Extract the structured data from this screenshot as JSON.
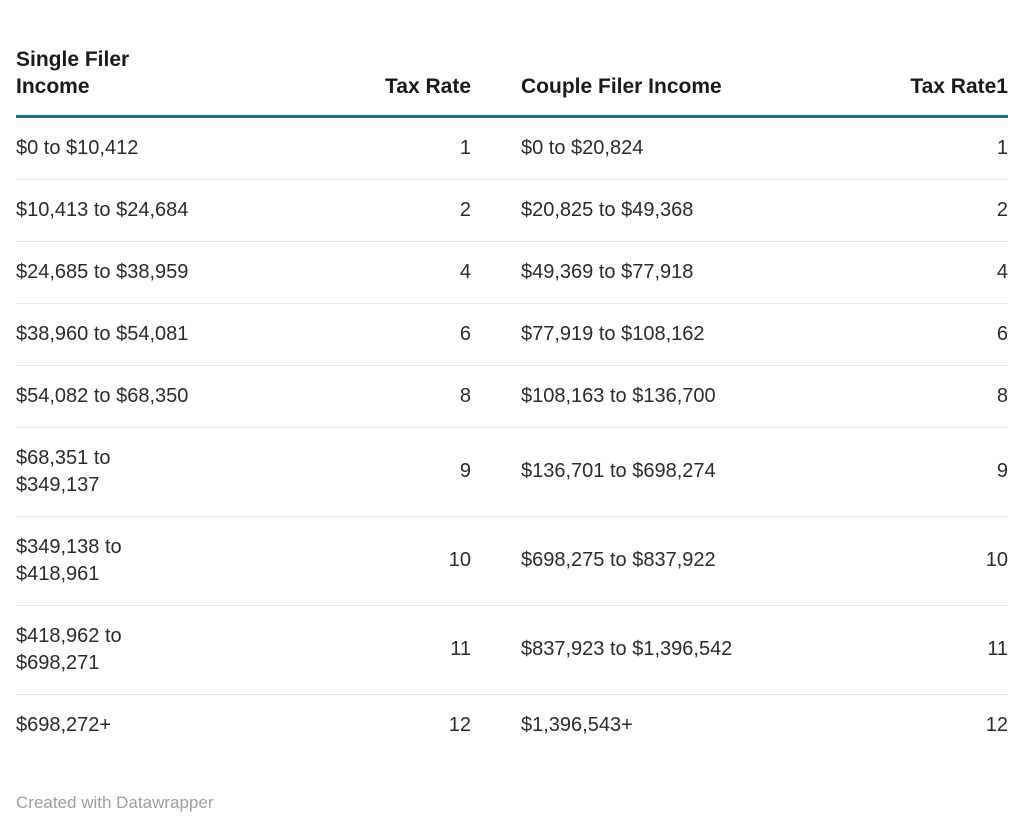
{
  "chart_data": {
    "type": "table",
    "columns": [
      "Single Filer Income",
      "Tax Rate",
      "Couple Filer Income",
      "Tax Rate1"
    ],
    "rows": [
      [
        "$0 to $10,412",
        "1",
        "$0 to $20,824",
        "1"
      ],
      [
        "$10,413 to $24,684",
        "2",
        "$20,825 to $49,368",
        "2"
      ],
      [
        "$24,685 to $38,959",
        "4",
        "$49,369 to $77,918",
        "4"
      ],
      [
        "$38,960 to $54,081",
        "6",
        "$77,919 to $108,162",
        "6"
      ],
      [
        "$54,082 to $68,350",
        "8",
        "$108,163 to $136,700",
        "8"
      ],
      [
        "$68,351 to $349,137",
        "9",
        "$136,701 to $698,274",
        "9"
      ],
      [
        "$349,138 to $418,961",
        "10",
        "$698,275 to $837,922",
        "10"
      ],
      [
        "$418,962 to $698,271",
        "11",
        "$837,923 to $1,396,542",
        "11"
      ],
      [
        "$698,272+",
        "12",
        "$1,396,543+",
        "12"
      ]
    ],
    "legend_position": "none",
    "grid": "horizontal-row-separators"
  },
  "footer": {
    "attribution": "Created with Datawrapper"
  },
  "colors": {
    "header_rule": "#1e6b8c",
    "row_separator": "#e9e9e9",
    "header_text": "#1a1a1a",
    "body_text": "#2b2b2b",
    "footer_text": "#9e9e9e",
    "background": "#ffffff"
  }
}
